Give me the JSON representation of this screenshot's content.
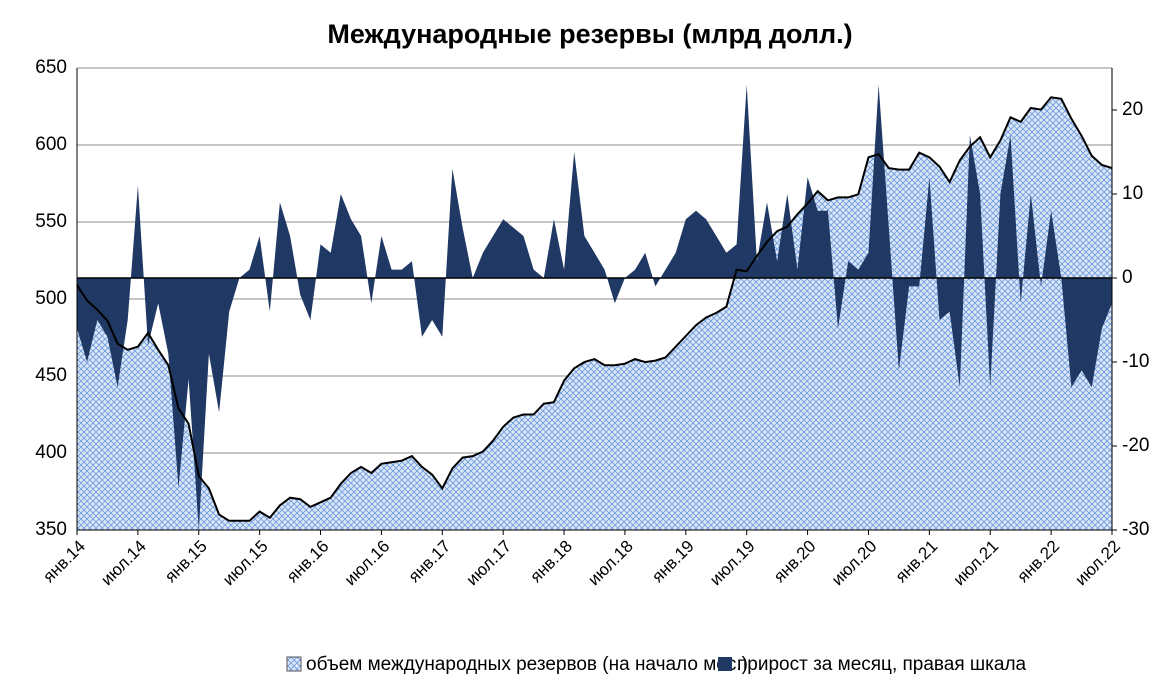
{
  "chart_data": {
    "type": "area",
    "title": "Международные резервы (млрд долл.)",
    "categories": [
      "янв.14",
      null,
      null,
      null,
      null,
      null,
      "июл.14",
      null,
      null,
      null,
      null,
      null,
      "янв.15",
      null,
      null,
      null,
      null,
      null,
      "июл.15",
      null,
      null,
      null,
      null,
      null,
      "янв.16",
      null,
      null,
      null,
      null,
      null,
      "июл.16",
      null,
      null,
      null,
      null,
      null,
      "янв.17",
      null,
      null,
      null,
      null,
      null,
      "июл.17",
      null,
      null,
      null,
      null,
      null,
      "янв.18",
      null,
      null,
      null,
      null,
      null,
      "июл.18",
      null,
      null,
      null,
      null,
      null,
      "янв.19",
      null,
      null,
      null,
      null,
      null,
      "июл.19",
      null,
      null,
      null,
      null,
      null,
      "янв.20",
      null,
      null,
      null,
      null,
      null,
      "июл.20",
      null,
      null,
      null,
      null,
      null,
      "янв.21",
      null,
      null,
      null,
      null,
      null,
      "июл.21",
      null,
      null,
      null,
      null,
      null,
      "янв.22",
      null,
      null,
      null,
      null,
      null,
      "июл.22"
    ],
    "series": [
      {
        "name": "объем международных резервов (на начало мес.)",
        "color": "#8fb4e3",
        "axis": "y",
        "values": [
          509,
          499,
          493,
          486,
          471,
          467,
          469,
          478,
          467,
          457,
          429,
          419,
          385,
          377,
          360,
          356,
          356,
          356,
          362,
          358,
          366,
          371,
          370,
          365,
          368,
          371,
          380,
          387,
          391,
          387,
          393,
          394,
          395,
          398,
          391,
          386,
          377,
          390,
          397,
          398,
          401,
          408,
          417,
          423,
          425,
          425,
          432,
          433,
          447,
          455,
          459,
          461,
          457,
          457,
          458,
          461,
          459,
          460,
          462,
          469,
          476,
          483,
          488,
          491,
          495,
          519,
          518,
          528,
          537,
          544,
          547,
          555,
          562,
          570,
          564,
          566,
          566,
          568,
          592,
          594,
          585,
          584,
          584,
          595,
          592,
          586,
          576,
          590,
          599,
          605,
          592,
          603,
          618,
          615,
          624,
          623,
          631,
          630,
          617,
          606,
          593,
          587,
          585
        ]
      },
      {
        "name": "прирост за месяц, правая шкала",
        "color": "#1f3864",
        "axis": "y2",
        "values": [
          -6,
          -10,
          -5,
          -7,
          -13,
          -5,
          11,
          -8,
          -3,
          -9,
          -25,
          -12,
          -30,
          -9,
          -16,
          -4,
          0,
          1,
          5,
          -4,
          9,
          5,
          -2,
          -5,
          4,
          3,
          10,
          7,
          5,
          -3,
          5,
          1,
          1,
          2,
          -7,
          -5,
          -7,
          13,
          6,
          0,
          3,
          5,
          7,
          6,
          5,
          1,
          0,
          7,
          1,
          15,
          5,
          3,
          1,
          -3,
          0,
          1,
          3,
          -1,
          1,
          3,
          7,
          8,
          7,
          5,
          3,
          4,
          23,
          2,
          9,
          2,
          10,
          1,
          12,
          8,
          8,
          -6,
          2,
          1,
          3,
          23,
          6,
          -11,
          -1,
          -1,
          12,
          -5,
          -4,
          -13,
          17,
          10,
          -13,
          10,
          17,
          -3,
          10,
          -1,
          8,
          0,
          -13,
          -11,
          -13,
          -6,
          -3
        ]
      }
    ],
    "ylim": [
      350,
      650
    ],
    "yticks": [
      350,
      400,
      450,
      500,
      550,
      600,
      650
    ],
    "y2lim": [
      -30,
      25
    ],
    "y2ticks": [
      -30,
      -20,
      -10,
      0,
      10,
      20
    ],
    "grid": true,
    "legend": "bottom"
  }
}
